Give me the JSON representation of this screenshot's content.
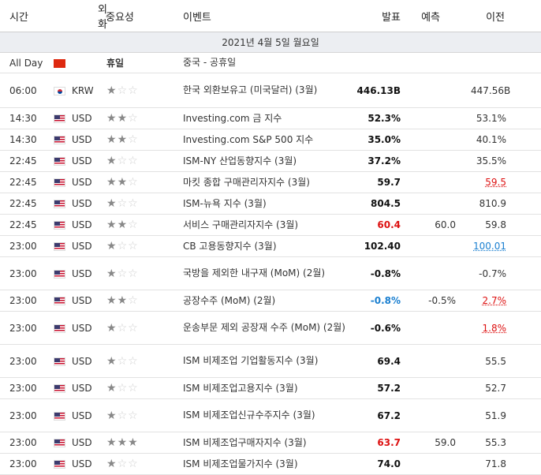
{
  "headers": {
    "time": "시간",
    "currency": "외화",
    "importance": "중요성",
    "event": "이벤트",
    "actual": "발표",
    "forecast": "예측",
    "previous": "이전"
  },
  "date_label": "2021년 4월 5일 월요일",
  "rows": [
    {
      "time": "All Day",
      "flag": "cn",
      "currency": "",
      "importance_text": "휴일",
      "event": "중국 - 공휴일",
      "actual": "",
      "actual_color": "",
      "forecast": "",
      "previous": "",
      "previous_style": ""
    },
    {
      "time": "06:00",
      "flag": "kr",
      "currency": "KRW",
      "stars": 1,
      "event": "한국 외환보유고 (미국달러) (3월)",
      "actual": "446.13B",
      "actual_color": "",
      "forecast": "",
      "previous": "447.56B",
      "previous_style": ""
    },
    {
      "time": "14:30",
      "flag": "us",
      "currency": "USD",
      "stars": 2,
      "event": "Investing.com 금 지수",
      "actual": "52.3%",
      "actual_color": "",
      "forecast": "",
      "previous": "53.1%",
      "previous_style": ""
    },
    {
      "time": "14:30",
      "flag": "us",
      "currency": "USD",
      "stars": 2,
      "event": "Investing.com S&P 500 지수",
      "actual": "35.0%",
      "actual_color": "",
      "forecast": "",
      "previous": "40.1%",
      "previous_style": ""
    },
    {
      "time": "22:45",
      "flag": "us",
      "currency": "USD",
      "stars": 1,
      "event": "ISM-NY 산업동향지수 (3월)",
      "actual": "37.2%",
      "actual_color": "",
      "forecast": "",
      "previous": "35.5%",
      "previous_style": ""
    },
    {
      "time": "22:45",
      "flag": "us",
      "currency": "USD",
      "stars": 2,
      "event": "마킷 종합 구매관리자지수 (3월)",
      "actual": "59.7",
      "actual_color": "",
      "forecast": "",
      "previous": "59.5",
      "previous_style": "red"
    },
    {
      "time": "22:45",
      "flag": "us",
      "currency": "USD",
      "stars": 1,
      "event": "ISM-뉴욕 지수 (3월)",
      "actual": "804.5",
      "actual_color": "",
      "forecast": "",
      "previous": "810.9",
      "previous_style": ""
    },
    {
      "time": "22:45",
      "flag": "us",
      "currency": "USD",
      "stars": 2,
      "event": "서비스 구매관리자지수 (3월)",
      "actual": "60.4",
      "actual_color": "red",
      "forecast": "60.0",
      "previous": "59.8",
      "previous_style": ""
    },
    {
      "time": "23:00",
      "flag": "us",
      "currency": "USD",
      "stars": 1,
      "event": "CB 고용동향지수 (3월)",
      "actual": "102.40",
      "actual_color": "",
      "forecast": "",
      "previous": "100.01",
      "previous_style": "blue"
    },
    {
      "time": "23:00",
      "flag": "us",
      "currency": "USD",
      "stars": 1,
      "event": "국방을 제외한 내구재 (MoM) (2월)",
      "actual": "-0.8%",
      "actual_color": "",
      "forecast": "",
      "previous": "-0.7%",
      "previous_style": ""
    },
    {
      "time": "23:00",
      "flag": "us",
      "currency": "USD",
      "stars": 2,
      "event": "공장수주 (MoM) (2월)",
      "actual": "-0.8%",
      "actual_color": "blue",
      "forecast": "-0.5%",
      "previous": "2.7%",
      "previous_style": "red"
    },
    {
      "time": "23:00",
      "flag": "us",
      "currency": "USD",
      "stars": 1,
      "event": "운송부문 제외 공장재 수주 (MoM) (2월)",
      "actual": "-0.6%",
      "actual_color": "",
      "forecast": "",
      "previous": "1.8%",
      "previous_style": "red"
    },
    {
      "time": "23:00",
      "flag": "us",
      "currency": "USD",
      "stars": 1,
      "event": "ISM 비제조업 기업활동지수 (3월)",
      "actual": "69.4",
      "actual_color": "",
      "forecast": "",
      "previous": "55.5",
      "previous_style": ""
    },
    {
      "time": "23:00",
      "flag": "us",
      "currency": "USD",
      "stars": 1,
      "event": "ISM 비제조업고용지수 (3월)",
      "actual": "57.2",
      "actual_color": "",
      "forecast": "",
      "previous": "52.7",
      "previous_style": ""
    },
    {
      "time": "23:00",
      "flag": "us",
      "currency": "USD",
      "stars": 1,
      "event": "ISM 비제조업신규수주지수 (3월)",
      "actual": "67.2",
      "actual_color": "",
      "forecast": "",
      "previous": "51.9",
      "previous_style": ""
    },
    {
      "time": "23:00",
      "flag": "us",
      "currency": "USD",
      "stars": 3,
      "event": "ISM 비제조업구매자지수 (3월)",
      "actual": "63.7",
      "actual_color": "red",
      "forecast": "59.0",
      "previous": "55.3",
      "previous_style": ""
    },
    {
      "time": "23:00",
      "flag": "us",
      "currency": "USD",
      "stars": 1,
      "event": "ISM 비제조업물가지수 (3월)",
      "actual": "74.0",
      "actual_color": "",
      "forecast": "",
      "previous": "71.8",
      "previous_style": ""
    }
  ],
  "row_heights": null
}
